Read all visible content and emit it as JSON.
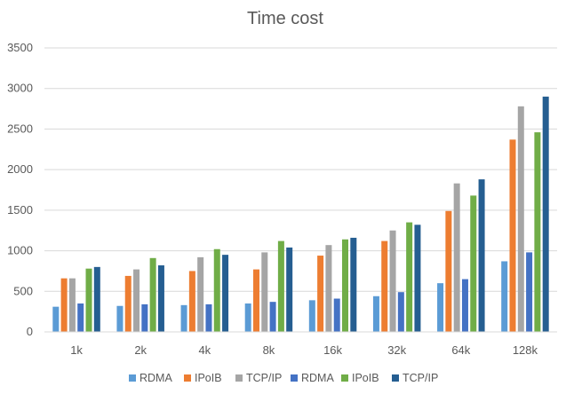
{
  "chart_data": {
    "type": "bar",
    "title": "Time cost",
    "xlabel": "",
    "ylabel": "",
    "ylim": [
      0,
      3500
    ],
    "yticks": [
      0,
      500,
      1000,
      1500,
      2000,
      2500,
      3000,
      3500
    ],
    "grid": true,
    "legend_position": "bottom",
    "categories": [
      "1k",
      "2k",
      "4k",
      "8k",
      "16k",
      "32k",
      "64k",
      "128k"
    ],
    "series": [
      {
        "name": "RDMA",
        "color": "#5B9BD5",
        "values": [
          310,
          320,
          330,
          350,
          390,
          440,
          600,
          870
        ]
      },
      {
        "name": "IPoIB",
        "color": "#ED7D31",
        "values": [
          660,
          690,
          750,
          770,
          940,
          1120,
          1490,
          2370
        ]
      },
      {
        "name": "TCP/IP",
        "color": "#A5A5A5",
        "values": [
          660,
          770,
          920,
          980,
          1070,
          1250,
          1830,
          2780
        ]
      },
      {
        "name": "RDMA",
        "color": "#4472C4",
        "values": [
          350,
          340,
          340,
          370,
          410,
          490,
          650,
          980
        ]
      },
      {
        "name": "IPoIB",
        "color": "#70AD47",
        "values": [
          780,
          910,
          1020,
          1120,
          1140,
          1350,
          1680,
          2460
        ]
      },
      {
        "name": "TCP/IP",
        "color": "#255E91",
        "values": [
          800,
          820,
          950,
          1040,
          1160,
          1320,
          1880,
          2900
        ]
      }
    ]
  }
}
